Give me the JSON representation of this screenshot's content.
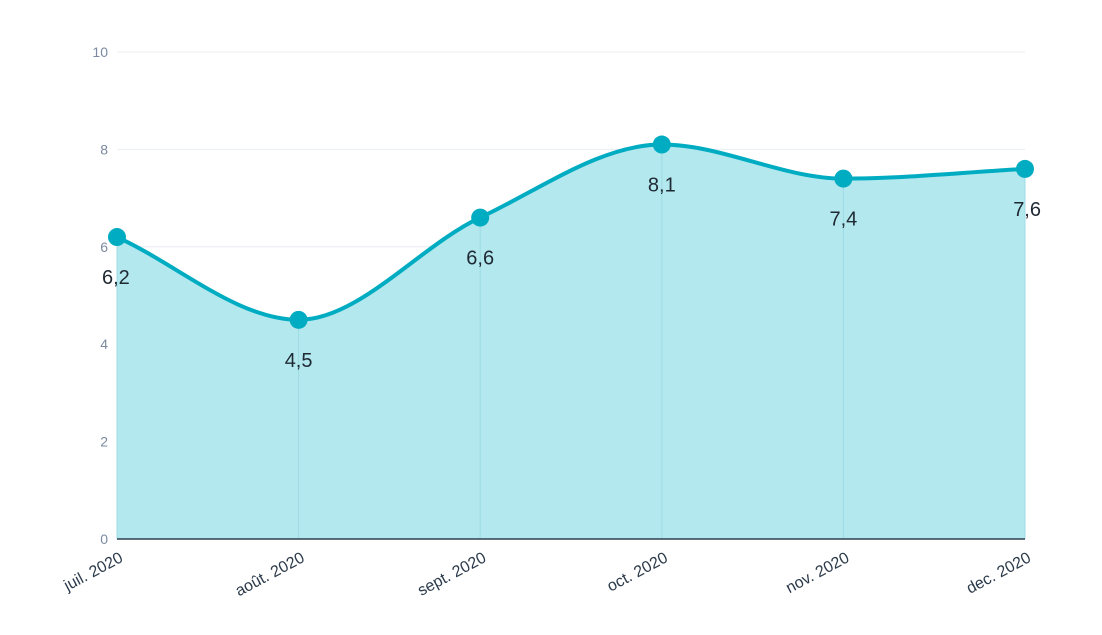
{
  "chart_data": {
    "type": "area",
    "categories": [
      "juil. 2020",
      "août. 2020",
      "sept. 2020",
      "oct. 2020",
      "nov. 2020",
      "dec. 2020"
    ],
    "series": [
      {
        "values": [
          6.2,
          4.5,
          6.6,
          8.1,
          7.4,
          7.6
        ]
      }
    ],
    "data_labels": [
      "6,2",
      "4,5",
      "6,6",
      "8,1",
      "7,4",
      "7,6"
    ],
    "yticks": [
      "0",
      "2",
      "4",
      "6",
      "8",
      "10"
    ],
    "ylim": [
      0,
      10
    ],
    "grid": true,
    "colors": {
      "line": "#00acc1",
      "fill": "#b2e8ee",
      "marker": "#00acc1"
    }
  }
}
